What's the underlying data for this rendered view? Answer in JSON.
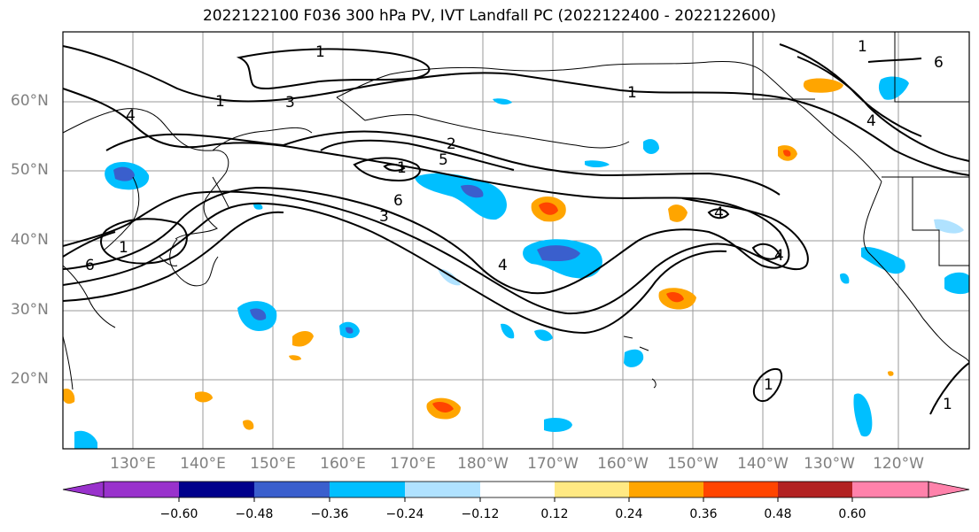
{
  "title": "2022122100 F036 300 hPa PV, IVT Landfall PC (2022122400 - 2022122600)",
  "lat_labels": [
    "60°N",
    "50°N",
    "40°N",
    "30°N",
    "20°N"
  ],
  "lon_labels": [
    "130°E",
    "140°E",
    "150°E",
    "160°E",
    "170°E",
    "180°W",
    "170°W",
    "160°W",
    "150°W",
    "140°W",
    "130°W",
    "120°W"
  ],
  "contour_labels": [
    "1",
    "1",
    "1",
    "3",
    "4",
    "2",
    "5",
    "6",
    "3",
    "4",
    "6",
    "1",
    "1",
    "6",
    "4",
    "4",
    "1",
    "1",
    "4",
    "1"
  ],
  "colorbar": {
    "tick_labels": [
      "−0.60",
      "−0.48",
      "−0.36",
      "−0.24",
      "−0.12",
      "0.12",
      "0.24",
      "0.36",
      "0.48",
      "0.60"
    ],
    "colors": [
      "#9932cc",
      "#00008b",
      "#3a5fcd",
      "#00bfff",
      "#b0e2ff",
      "#ffffff",
      "#ffe983",
      "#ffa500",
      "#ff4500",
      "#b22222",
      "#ff82ab"
    ]
  }
}
